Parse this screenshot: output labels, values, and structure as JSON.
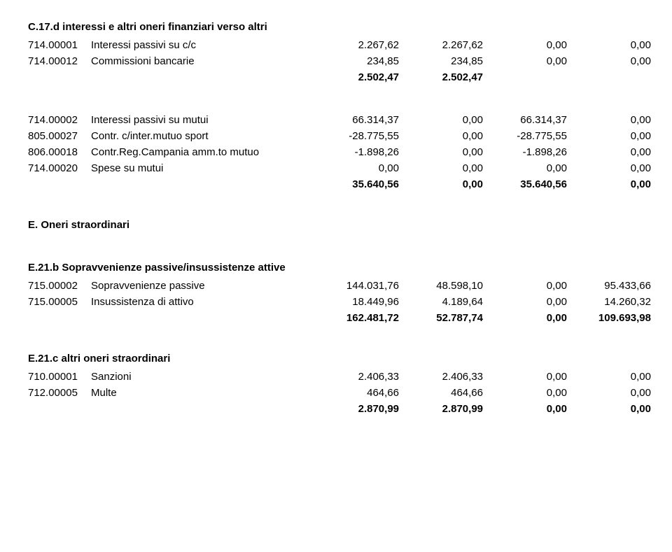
{
  "sections": {
    "c17d": {
      "title": "C.17.d interessi e altri oneri finanziari verso altri",
      "rows": [
        {
          "code": "714.00001",
          "desc": "Interessi passivi su c/c",
          "v1": "2.267,62",
          "v2": "2.267,62",
          "v3": "0,00",
          "v4": "0,00"
        },
        {
          "code": "714.00012",
          "desc": "Commissioni bancarie",
          "v1": "234,85",
          "v2": "234,85",
          "v3": "0,00",
          "v4": "0,00"
        }
      ],
      "subtotal": {
        "v1": "2.502,47",
        "v2": "2.502,47"
      }
    },
    "block2": {
      "rows": [
        {
          "code": "714.00002",
          "desc": "Interessi passivi su mutui",
          "v1": "66.314,37",
          "v2": "0,00",
          "v3": "66.314,37",
          "v4": "0,00"
        },
        {
          "code": "805.00027",
          "desc": "Contr. c/inter.mutuo sport",
          "v1": "-28.775,55",
          "v2": "0,00",
          "v3": "-28.775,55",
          "v4": "0,00"
        },
        {
          "code": "806.00018",
          "desc": "Contr.Reg.Campania amm.to mutuo",
          "v1": "-1.898,26",
          "v2": "0,00",
          "v3": "-1.898,26",
          "v4": "0,00"
        },
        {
          "code": "714.00020",
          "desc": "Spese su mutui",
          "v1": "0,00",
          "v2": "0,00",
          "v3": "0,00",
          "v4": "0,00"
        }
      ],
      "subtotal": {
        "v1": "35.640,56",
        "v2": "0,00",
        "v3": "35.640,56",
        "v4": "0,00"
      }
    },
    "e": {
      "title": "E. Oneri straordinari"
    },
    "e21b": {
      "title": "E.21.b Sopravvenienze passive/insussistenze attive",
      "rows": [
        {
          "code": "715.00002",
          "desc": "Sopravvenienze passive",
          "v1": "144.031,76",
          "v2": "48.598,10",
          "v3": "0,00",
          "v4": "95.433,66"
        },
        {
          "code": "715.00005",
          "desc": "Insussistenza di attivo",
          "v1": "18.449,96",
          "v2": "4.189,64",
          "v3": "0,00",
          "v4": "14.260,32"
        }
      ],
      "subtotal": {
        "v1": "162.481,72",
        "v2": "52.787,74",
        "v3": "0,00",
        "v4": "109.693,98"
      }
    },
    "e21c": {
      "title": "E.21.c altri oneri straordinari",
      "rows": [
        {
          "code": "710.00001",
          "desc": "Sanzioni",
          "v1": "2.406,33",
          "v2": "2.406,33",
          "v3": "0,00",
          "v4": "0,00"
        },
        {
          "code": "712.00005",
          "desc": "Multe",
          "v1": "464,66",
          "v2": "464,66",
          "v3": "0,00",
          "v4": "0,00"
        }
      ],
      "subtotal": {
        "v1": "2.870,99",
        "v2": "2.870,99",
        "v3": "0,00",
        "v4": "0,00"
      }
    }
  }
}
